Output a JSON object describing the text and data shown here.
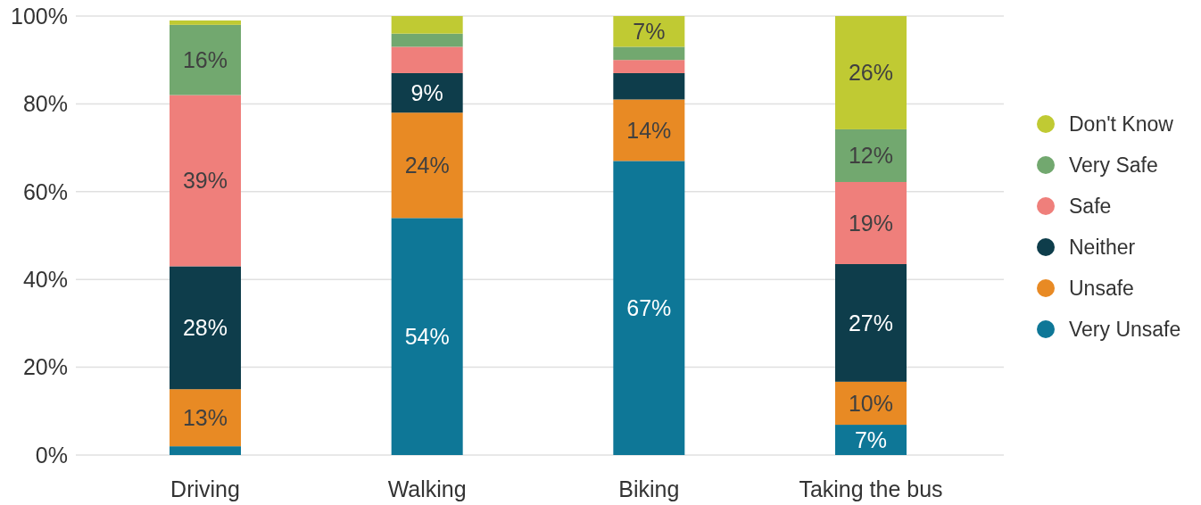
{
  "chart_data": {
    "type": "bar",
    "stacked": true,
    "categories": [
      "Driving",
      "Walking",
      "Biking",
      "Taking the bus"
    ],
    "series": [
      {
        "name": "Very Unsafe",
        "color": "#0e7797",
        "values": [
          2,
          54,
          67,
          6.9
        ],
        "value_labels": [
          null,
          "54%",
          "67%",
          "7%"
        ]
      },
      {
        "name": "Unsafe",
        "color": "#e88a24",
        "values": [
          13,
          24,
          14,
          9.8
        ],
        "value_labels": [
          "13%",
          "24%",
          "14%",
          "10%"
        ]
      },
      {
        "name": "Neither",
        "color": "#0e3d4b",
        "values": [
          28,
          9,
          6,
          26.8
        ],
        "value_labels": [
          "28%",
          "9%",
          null,
          "27%"
        ]
      },
      {
        "name": "Safe",
        "color": "#ef7f7b",
        "values": [
          39,
          6,
          3,
          18.7
        ],
        "value_labels": [
          "39%",
          null,
          null,
          "19%"
        ]
      },
      {
        "name": "Very Safe",
        "color": "#72a86f",
        "values": [
          16,
          3,
          3,
          12
        ],
        "value_labels": [
          "16%",
          null,
          null,
          "12%"
        ]
      },
      {
        "name": "Don't Know",
        "color": "#c0ca33",
        "values": [
          1,
          4,
          7,
          25.8
        ],
        "value_labels": [
          null,
          null,
          "7%",
          "26%"
        ]
      }
    ],
    "ylim": [
      0,
      100
    ],
    "yticks": [
      {
        "value": 0,
        "label": "0%"
      },
      {
        "value": 20,
        "label": "20%"
      },
      {
        "value": 40,
        "label": "40%"
      },
      {
        "value": 60,
        "label": "60%"
      },
      {
        "value": 80,
        "label": "80%"
      },
      {
        "value": 100,
        "label": "100%"
      }
    ],
    "grid": "y",
    "legend": "right"
  }
}
